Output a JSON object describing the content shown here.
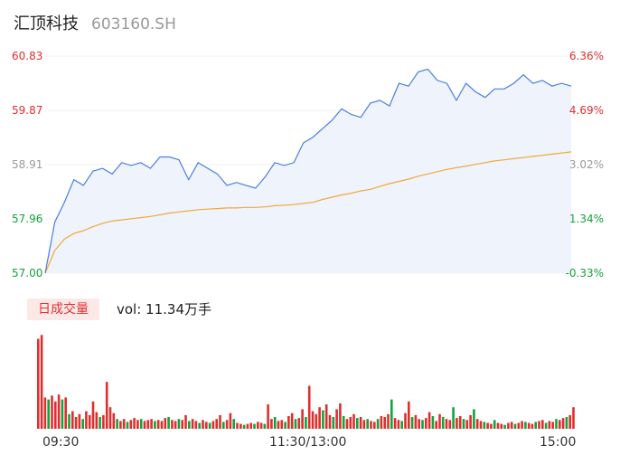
{
  "header": {
    "name": "汇顶科技",
    "code": "603160.SH"
  },
  "colors": {
    "up": "#e02e2e",
    "down": "#12a33d",
    "price_line": "#4a7fe0",
    "avg_line": "#f2a83a"
  },
  "volume_panel": {
    "tag": "日成交量",
    "text": "vol: 11.34万手"
  },
  "chart_data": [
    {
      "type": "line",
      "price_labels": [
        "60.83",
        "59.87",
        "58.91",
        "57.96",
        "57.00"
      ],
      "pct_labels": [
        "6.36%",
        "4.69%",
        "3.02%",
        "1.34%",
        "-0.33%"
      ],
      "ylim": [
        57.0,
        60.83
      ],
      "x_labels": [
        "09:30",
        "11:30/13:00",
        "15:00"
      ],
      "series": [
        {
          "values": [
            57.0,
            57.9,
            58.25,
            58.65,
            58.55,
            58.8,
            58.85,
            58.75,
            58.95,
            58.9,
            58.95,
            58.85,
            59.05,
            59.05,
            59.0,
            58.65,
            58.95,
            58.85,
            58.75,
            58.55,
            58.6,
            58.55,
            58.5,
            58.7,
            58.95,
            58.9,
            58.95,
            59.3,
            59.4,
            59.55,
            59.7,
            59.9,
            59.8,
            59.75,
            60.0,
            60.05,
            59.95,
            60.35,
            60.3,
            60.55,
            60.6,
            60.4,
            60.35,
            60.05,
            60.35,
            60.2,
            60.1,
            60.25,
            60.25,
            60.35,
            60.5,
            60.35,
            60.4,
            60.3,
            60.35,
            60.3
          ]
        },
        {
          "values": [
            57.0,
            57.4,
            57.6,
            57.7,
            57.75,
            57.82,
            57.88,
            57.92,
            57.94,
            57.96,
            57.98,
            58.0,
            58.03,
            58.06,
            58.08,
            58.1,
            58.12,
            58.13,
            58.14,
            58.15,
            58.15,
            58.16,
            58.16,
            58.17,
            58.19,
            58.2,
            58.21,
            58.23,
            58.25,
            58.3,
            58.34,
            58.38,
            58.41,
            58.45,
            58.48,
            58.53,
            58.58,
            58.62,
            58.66,
            58.71,
            58.75,
            58.79,
            58.83,
            58.86,
            58.89,
            58.92,
            58.95,
            58.98,
            59.0,
            59.02,
            59.04,
            59.06,
            59.08,
            59.1,
            59.12,
            59.14
          ]
        }
      ]
    },
    {
      "type": "bar",
      "values": [
        {
          "v": 0.92,
          "c": "up"
        },
        {
          "v": 0.96,
          "c": "up"
        },
        {
          "v": 0.32,
          "c": "up"
        },
        {
          "v": 0.3,
          "c": "down"
        },
        {
          "v": 0.34,
          "c": "up"
        },
        {
          "v": 0.28,
          "c": "up"
        },
        {
          "v": 0.35,
          "c": "up"
        },
        {
          "v": 0.3,
          "c": "down"
        },
        {
          "v": 0.32,
          "c": "up"
        },
        {
          "v": 0.15,
          "c": "down"
        },
        {
          "v": 0.18,
          "c": "up"
        },
        {
          "v": 0.12,
          "c": "up"
        },
        {
          "v": 0.15,
          "c": "up"
        },
        {
          "v": 0.1,
          "c": "down"
        },
        {
          "v": 0.18,
          "c": "up"
        },
        {
          "v": 0.14,
          "c": "up"
        },
        {
          "v": 0.28,
          "c": "up"
        },
        {
          "v": 0.17,
          "c": "up"
        },
        {
          "v": 0.12,
          "c": "down"
        },
        {
          "v": 0.14,
          "c": "up"
        },
        {
          "v": 0.48,
          "c": "up"
        },
        {
          "v": 0.22,
          "c": "up"
        },
        {
          "v": 0.16,
          "c": "up"
        },
        {
          "v": 0.1,
          "c": "down"
        },
        {
          "v": 0.08,
          "c": "up"
        },
        {
          "v": 0.1,
          "c": "up"
        },
        {
          "v": 0.07,
          "c": "down"
        },
        {
          "v": 0.09,
          "c": "up"
        },
        {
          "v": 0.11,
          "c": "up"
        },
        {
          "v": 0.09,
          "c": "up"
        },
        {
          "v": 0.1,
          "c": "down"
        },
        {
          "v": 0.08,
          "c": "up"
        },
        {
          "v": 0.09,
          "c": "up"
        },
        {
          "v": 0.1,
          "c": "up"
        },
        {
          "v": 0.08,
          "c": "down"
        },
        {
          "v": 0.09,
          "c": "up"
        },
        {
          "v": 0.08,
          "c": "up"
        },
        {
          "v": 0.11,
          "c": "up"
        },
        {
          "v": 0.12,
          "c": "down"
        },
        {
          "v": 0.09,
          "c": "up"
        },
        {
          "v": 0.08,
          "c": "up"
        },
        {
          "v": 0.1,
          "c": "down"
        },
        {
          "v": 0.09,
          "c": "up"
        },
        {
          "v": 0.14,
          "c": "up"
        },
        {
          "v": 0.08,
          "c": "down"
        },
        {
          "v": 0.1,
          "c": "up"
        },
        {
          "v": 0.08,
          "c": "up"
        },
        {
          "v": 0.06,
          "c": "down"
        },
        {
          "v": 0.09,
          "c": "up"
        },
        {
          "v": 0.07,
          "c": "up"
        },
        {
          "v": 0.06,
          "c": "down"
        },
        {
          "v": 0.08,
          "c": "up"
        },
        {
          "v": 0.1,
          "c": "up"
        },
        {
          "v": 0.14,
          "c": "up"
        },
        {
          "v": 0.07,
          "c": "down"
        },
        {
          "v": 0.09,
          "c": "up"
        },
        {
          "v": 0.16,
          "c": "up"
        },
        {
          "v": 0.1,
          "c": "down"
        },
        {
          "v": 0.06,
          "c": "up"
        },
        {
          "v": 0.05,
          "c": "up"
        },
        {
          "v": 0.04,
          "c": "down"
        },
        {
          "v": 0.05,
          "c": "up"
        },
        {
          "v": 0.06,
          "c": "up"
        },
        {
          "v": 0.05,
          "c": "down"
        },
        {
          "v": 0.07,
          "c": "up"
        },
        {
          "v": 0.06,
          "c": "up"
        },
        {
          "v": 0.05,
          "c": "down"
        },
        {
          "v": 0.25,
          "c": "up"
        },
        {
          "v": 0.1,
          "c": "up"
        },
        {
          "v": 0.12,
          "c": "down"
        },
        {
          "v": 0.08,
          "c": "up"
        },
        {
          "v": 0.09,
          "c": "up"
        },
        {
          "v": 0.07,
          "c": "down"
        },
        {
          "v": 0.13,
          "c": "up"
        },
        {
          "v": 0.16,
          "c": "up"
        },
        {
          "v": 0.1,
          "c": "down"
        },
        {
          "v": 0.11,
          "c": "up"
        },
        {
          "v": 0.2,
          "c": "up"
        },
        {
          "v": 0.12,
          "c": "down"
        },
        {
          "v": 0.44,
          "c": "up"
        },
        {
          "v": 0.18,
          "c": "up"
        },
        {
          "v": 0.15,
          "c": "up"
        },
        {
          "v": 0.22,
          "c": "up"
        },
        {
          "v": 0.19,
          "c": "down"
        },
        {
          "v": 0.25,
          "c": "up"
        },
        {
          "v": 0.14,
          "c": "up"
        },
        {
          "v": 0.12,
          "c": "down"
        },
        {
          "v": 0.2,
          "c": "up"
        },
        {
          "v": 0.26,
          "c": "up"
        },
        {
          "v": 0.13,
          "c": "down"
        },
        {
          "v": 0.1,
          "c": "up"
        },
        {
          "v": 0.12,
          "c": "up"
        },
        {
          "v": 0.15,
          "c": "up"
        },
        {
          "v": 0.11,
          "c": "down"
        },
        {
          "v": 0.12,
          "c": "up"
        },
        {
          "v": 0.09,
          "c": "up"
        },
        {
          "v": 0.1,
          "c": "down"
        },
        {
          "v": 0.08,
          "c": "up"
        },
        {
          "v": 0.07,
          "c": "up"
        },
        {
          "v": 0.1,
          "c": "down"
        },
        {
          "v": 0.13,
          "c": "up"
        },
        {
          "v": 0.12,
          "c": "up"
        },
        {
          "v": 0.15,
          "c": "up"
        },
        {
          "v": 0.3,
          "c": "down"
        },
        {
          "v": 0.11,
          "c": "up"
        },
        {
          "v": 0.09,
          "c": "up"
        },
        {
          "v": 0.08,
          "c": "down"
        },
        {
          "v": 0.16,
          "c": "up"
        },
        {
          "v": 0.28,
          "c": "up"
        },
        {
          "v": 0.12,
          "c": "down"
        },
        {
          "v": 0.14,
          "c": "up"
        },
        {
          "v": 0.1,
          "c": "up"
        },
        {
          "v": 0.09,
          "c": "down"
        },
        {
          "v": 0.11,
          "c": "up"
        },
        {
          "v": 0.17,
          "c": "up"
        },
        {
          "v": 0.13,
          "c": "down"
        },
        {
          "v": 0.08,
          "c": "up"
        },
        {
          "v": 0.15,
          "c": "up"
        },
        {
          "v": 0.12,
          "c": "down"
        },
        {
          "v": 0.1,
          "c": "up"
        },
        {
          "v": 0.09,
          "c": "up"
        },
        {
          "v": 0.22,
          "c": "down"
        },
        {
          "v": 0.11,
          "c": "up"
        },
        {
          "v": 0.13,
          "c": "up"
        },
        {
          "v": 0.1,
          "c": "down"
        },
        {
          "v": 0.09,
          "c": "up"
        },
        {
          "v": 0.14,
          "c": "up"
        },
        {
          "v": 0.2,
          "c": "down"
        },
        {
          "v": 0.1,
          "c": "up"
        },
        {
          "v": 0.08,
          "c": "up"
        },
        {
          "v": 0.07,
          "c": "down"
        },
        {
          "v": 0.06,
          "c": "up"
        },
        {
          "v": 0.05,
          "c": "up"
        },
        {
          "v": 0.09,
          "c": "down"
        },
        {
          "v": 0.06,
          "c": "up"
        },
        {
          "v": 0.05,
          "c": "up"
        },
        {
          "v": 0.04,
          "c": "down"
        },
        {
          "v": 0.06,
          "c": "up"
        },
        {
          "v": 0.07,
          "c": "up"
        },
        {
          "v": 0.05,
          "c": "down"
        },
        {
          "v": 0.06,
          "c": "up"
        },
        {
          "v": 0.08,
          "c": "up"
        },
        {
          "v": 0.07,
          "c": "down"
        },
        {
          "v": 0.06,
          "c": "up"
        },
        {
          "v": 0.05,
          "c": "up"
        },
        {
          "v": 0.07,
          "c": "down"
        },
        {
          "v": 0.08,
          "c": "up"
        },
        {
          "v": 0.09,
          "c": "up"
        },
        {
          "v": 0.06,
          "c": "down"
        },
        {
          "v": 0.08,
          "c": "up"
        },
        {
          "v": 0.07,
          "c": "up"
        },
        {
          "v": 0.1,
          "c": "down"
        },
        {
          "v": 0.09,
          "c": "up"
        },
        {
          "v": 0.11,
          "c": "up"
        },
        {
          "v": 0.12,
          "c": "down"
        },
        {
          "v": 0.14,
          "c": "up"
        },
        {
          "v": 0.22,
          "c": "up"
        }
      ]
    }
  ]
}
